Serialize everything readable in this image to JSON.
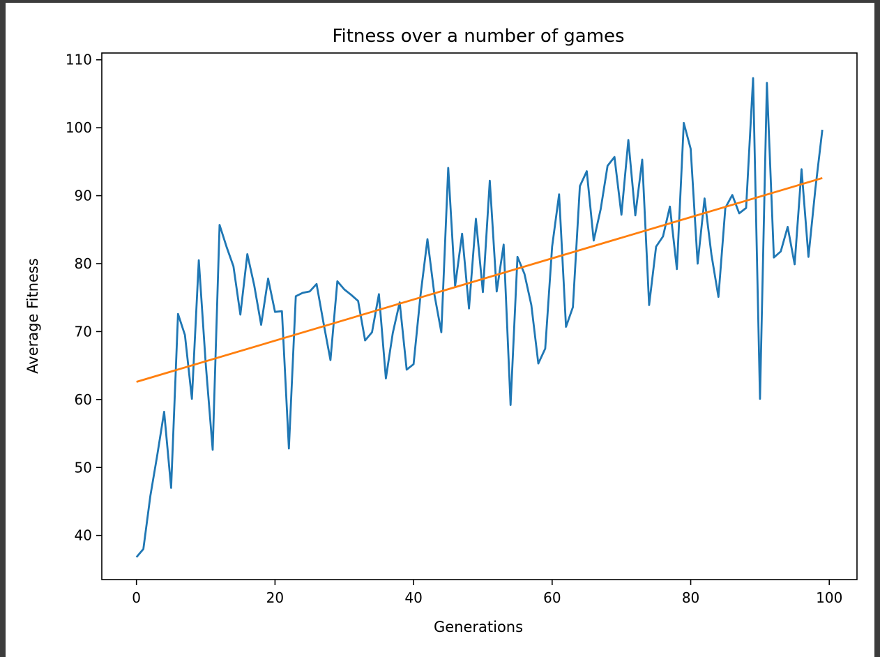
{
  "chart_data": {
    "type": "line",
    "title": "Fitness over a number of games",
    "xlabel": "Generations",
    "ylabel": "Average Fitness",
    "xlim": [
      -5,
      104
    ],
    "ylim": [
      33.5,
      111.0
    ],
    "xticks": [
      0,
      20,
      40,
      60,
      80,
      100
    ],
    "yticks": [
      40,
      50,
      60,
      70,
      80,
      90,
      100,
      110
    ],
    "grid": false,
    "legend": "none",
    "series": [
      {
        "color": "#1f77b4",
        "x": [
          0,
          1,
          2,
          3,
          4,
          5,
          6,
          7,
          8,
          9,
          10,
          11,
          12,
          13,
          14,
          15,
          16,
          17,
          18,
          19,
          20,
          21,
          22,
          23,
          24,
          25,
          26,
          27,
          28,
          29,
          30,
          31,
          32,
          33,
          34,
          35,
          36,
          37,
          38,
          39,
          40,
          41,
          42,
          43,
          44,
          45,
          46,
          47,
          48,
          49,
          50,
          51,
          52,
          53,
          54,
          55,
          56,
          57,
          58,
          59,
          60,
          61,
          62,
          63,
          64,
          65,
          66,
          67,
          68,
          69,
          70,
          71,
          72,
          73,
          74,
          75,
          76,
          77,
          78,
          79,
          80,
          81,
          82,
          83,
          84,
          85,
          86,
          87,
          88,
          89,
          90,
          91,
          92,
          93,
          94,
          95,
          96,
          97,
          98,
          99
        ],
        "y": [
          36.8,
          38.0,
          45.8,
          51.8,
          58.2,
          47.0,
          72.6,
          69.5,
          60.1,
          80.5,
          65.3,
          52.6,
          85.7,
          82.5,
          79.6,
          72.5,
          81.4,
          76.8,
          71.0,
          77.8,
          72.9,
          73.0,
          52.8,
          75.2,
          75.7,
          75.9,
          77.0,
          71.3,
          65.8,
          77.4,
          76.2,
          75.4,
          74.5,
          68.7,
          69.9,
          75.5,
          63.1,
          69.8,
          74.3,
          64.4,
          65.2,
          75.3,
          83.6,
          75.5,
          69.9,
          94.1,
          76.7,
          84.4,
          73.4,
          86.6,
          75.8,
          92.2,
          75.9,
          82.8,
          59.2,
          81.0,
          78.5,
          73.9,
          65.3,
          67.5,
          82.5,
          90.2,
          70.7,
          73.6,
          91.4,
          93.6,
          83.4,
          88.0,
          94.4,
          95.7,
          87.2,
          98.2,
          87.1,
          95.3,
          73.9,
          82.5,
          84.0,
          88.4,
          79.2,
          100.7,
          96.9,
          80.0,
          89.6,
          81.3,
          75.1,
          88.2,
          90.1,
          87.4,
          88.2,
          107.3,
          60.1,
          106.6,
          80.9,
          81.8,
          85.4,
          79.9,
          93.9,
          81.0,
          91.1,
          99.7
        ]
      },
      {
        "color": "#ff7f0e",
        "x": [
          0,
          99
        ],
        "y": [
          62.6,
          92.6
        ]
      }
    ]
  }
}
